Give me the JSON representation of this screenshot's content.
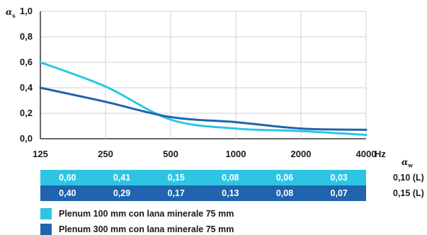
{
  "chart_data": {
    "type": "line",
    "ylabel_symbol": "α",
    "ylabel_subscript": "s",
    "xunit": "Hz",
    "x": [
      "125",
      "250",
      "500",
      "1000",
      "2000",
      "4000"
    ],
    "yticks": [
      "1,0",
      "0,8",
      "0,6",
      "0,4",
      "0,2",
      "0,0"
    ],
    "ylim": [
      0,
      1
    ],
    "grid": true,
    "series": [
      {
        "name": "Plenum 100 mm con lana minerale 75 mm",
        "color": "#2ec4e4",
        "values": [
          0.6,
          0.41,
          0.15,
          0.08,
          0.06,
          0.03
        ],
        "labels": [
          "0,60",
          "0,41",
          "0,15",
          "0,08",
          "0,06",
          "0,03"
        ],
        "aw": "0,10 (L)"
      },
      {
        "name": "Plenum 300 mm con lana minerale 75 mm",
        "color": "#1f64ad",
        "values": [
          0.4,
          0.29,
          0.17,
          0.13,
          0.08,
          0.07
        ],
        "labels": [
          "0,40",
          "0,29",
          "0,17",
          "0,13",
          "0,08",
          "0,07"
        ],
        "aw": "0,15 (L)"
      }
    ],
    "aw_symbol": "α",
    "aw_subscript": "w"
  }
}
